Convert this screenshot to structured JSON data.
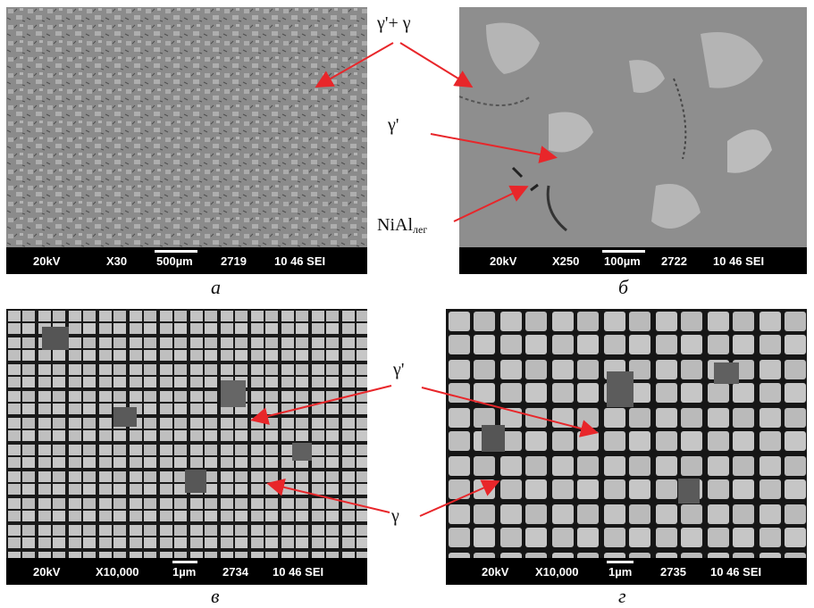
{
  "panels": [
    {
      "id": "a",
      "caption": "а",
      "kv": "20kV",
      "mag": "X30",
      "scale": "500µm",
      "num": "2719",
      "code": "10 46 SEI"
    },
    {
      "id": "b",
      "caption": "б",
      "kv": "20kV",
      "mag": "X250",
      "scale": "100µm",
      "num": "2722",
      "code": "10 46 SEI"
    },
    {
      "id": "c",
      "caption": "в",
      "kv": "20kV",
      "mag": "X10,000",
      "scale": "1µm",
      "num": "2734",
      "code": "10 46 SEI"
    },
    {
      "id": "d",
      "caption": "г",
      "kv": "20kV",
      "mag": "X10,000",
      "scale": "1µm",
      "num": "2735",
      "code": "10 46 SEI"
    }
  ],
  "labels": {
    "gamma_prime_plus_gamma": "γ'+ γ",
    "gamma_prime_top": "γ'",
    "nial_base": "NiAl",
    "nial_sub": "лег",
    "gamma_prime_bottom": "γ'",
    "gamma_bottom": "γ"
  },
  "colors": {
    "arrow": "#e8262a",
    "scalebar": "#000000"
  }
}
